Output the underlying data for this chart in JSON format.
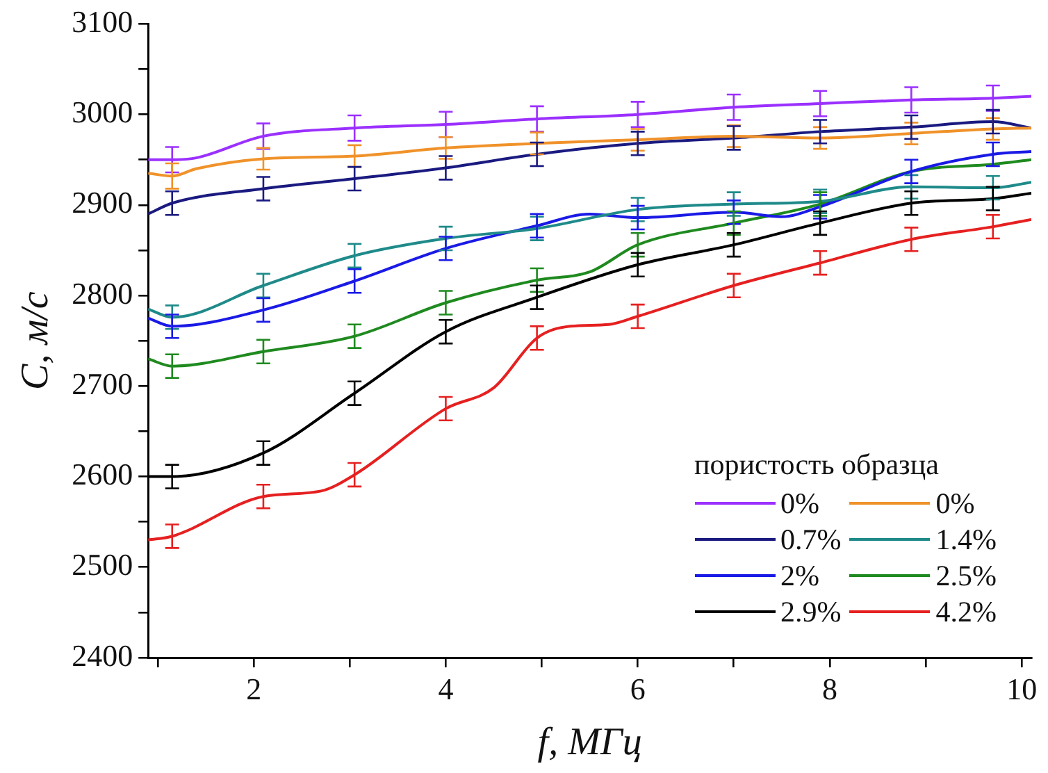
{
  "chart_data": {
    "type": "line",
    "xlabel": "f, МГц",
    "ylabel": "C, м/с",
    "legend_title": "пористость образца",
    "legend": "bottom right",
    "grid": false,
    "line_style": "solid",
    "xlim": [
      0.9,
      10.1
    ],
    "xticks": [
      {
        "value": 1,
        "label": null
      },
      2,
      {
        "value": 3,
        "label": null
      },
      4,
      {
        "value": 5,
        "label": null
      },
      6,
      {
        "value": 7,
        "label": null
      },
      8,
      {
        "value": 9,
        "label": null
      },
      10
    ],
    "ylim": [
      2400,
      3100
    ],
    "yticks": [
      2400,
      {
        "value": 2450,
        "label": null
      },
      2500,
      {
        "value": 2550,
        "label": null
      },
      2600,
      {
        "value": 2650,
        "label": null
      },
      2700,
      {
        "value": 2750,
        "label": null
      },
      2800,
      {
        "value": 2850,
        "label": null
      },
      2900,
      {
        "value": 2950,
        "label": null
      },
      3000,
      {
        "value": 3050,
        "label": null
      },
      3100
    ],
    "series": [
      {
        "name": "0%",
        "color": "#9b30ff",
        "x": [
          0.9,
          1.15,
          1.4,
          2.1,
          3.05,
          4,
          4.95,
          6,
          7,
          7.9,
          8.85,
          9.7,
          10.1
        ],
        "values": [
          2950,
          2950,
          2952,
          2976,
          2985,
          2989,
          2995,
          3000,
          3008,
          3012,
          3016,
          3018,
          3020
        ],
        "errors": [
          null,
          14,
          null,
          14,
          14,
          14,
          14,
          14,
          14,
          14,
          14,
          14,
          null
        ]
      },
      {
        "name": "0%",
        "color": "#f0922a",
        "x": [
          0.9,
          1.15,
          1.4,
          2.1,
          3.05,
          4,
          4.95,
          6,
          7,
          7.9,
          8.85,
          9.7,
          10.1
        ],
        "values": [
          2935,
          2932,
          2940,
          2951,
          2954,
          2963,
          2968,
          2972,
          2976,
          2974,
          2979,
          2984,
          2985
        ],
        "errors": [
          null,
          14,
          null,
          12,
          12,
          12,
          12,
          12,
          12,
          12,
          12,
          12,
          null
        ]
      },
      {
        "name": "0.7%",
        "color": "#1a1a80",
        "x": [
          0.9,
          1.15,
          2.1,
          3.05,
          4,
          4.95,
          6,
          7,
          7.9,
          8.85,
          9.7,
          10.1
        ],
        "values": [
          2890,
          2902,
          2918,
          2929,
          2941,
          2956,
          2968,
          2974,
          2981,
          2986,
          2992,
          2985
        ],
        "errors": [
          null,
          13,
          13,
          13,
          13,
          13,
          13,
          13,
          13,
          13,
          13,
          null
        ]
      },
      {
        "name": "1.4%",
        "color": "#1f8a8a",
        "x": [
          0.9,
          1.15,
          2.1,
          3.05,
          4,
          4.95,
          6,
          7,
          7.9,
          8.85,
          9.7,
          10.1
        ],
        "values": [
          2785,
          2776,
          2811,
          2844,
          2863,
          2874,
          2895,
          2901,
          2904,
          2920,
          2919,
          2925
        ],
        "errors": [
          null,
          13,
          13,
          13,
          13,
          13,
          13,
          13,
          13,
          13,
          13,
          null
        ]
      },
      {
        "name": "2%",
        "color": "#1a1ae6",
        "x": [
          0.9,
          1.15,
          2.1,
          3.05,
          4,
          4.95,
          5.5,
          6,
          7,
          7.5,
          7.9,
          8.85,
          9.7,
          10.1
        ],
        "values": [
          2775,
          2766,
          2784,
          2816,
          2852,
          2877,
          2890,
          2886,
          2892,
          2887,
          2898,
          2937,
          2956,
          2959
        ],
        "errors": [
          null,
          13,
          13,
          13,
          13,
          13,
          null,
          13,
          13,
          null,
          13,
          13,
          13,
          null
        ]
      },
      {
        "name": "2.5%",
        "color": "#1f8a1f",
        "x": [
          0.9,
          1.15,
          2.1,
          3.05,
          4,
          4.95,
          5.5,
          6,
          7,
          7.9,
          8.85,
          9.7,
          10.1
        ],
        "values": [
          2730,
          2722,
          2738,
          2755,
          2792,
          2817,
          2826,
          2856,
          2880,
          2901,
          2937,
          2945,
          2950
        ],
        "errors": [
          null,
          13,
          13,
          13,
          13,
          13,
          null,
          13,
          13,
          13,
          null,
          null,
          null
        ]
      },
      {
        "name": "2.9%",
        "color": "#000000",
        "x": [
          0.9,
          1.15,
          2.1,
          3.05,
          4,
          4.95,
          6,
          7,
          7.9,
          8.85,
          9.7,
          10.1
        ],
        "values": [
          2600,
          2600,
          2626,
          2692,
          2760,
          2798,
          2834,
          2856,
          2880,
          2902,
          2907,
          2913
        ],
        "errors": [
          null,
          13,
          13,
          13,
          13,
          13,
          13,
          13,
          13,
          13,
          13,
          null
        ]
      },
      {
        "name": "4.2%",
        "color": "#e62020",
        "x": [
          0.9,
          1.15,
          2.1,
          2.7,
          3.05,
          4,
          4.5,
          4.95,
          5.3,
          5.7,
          6,
          7,
          7.9,
          8.85,
          9.7,
          10.1
        ],
        "values": [
          2530,
          2534,
          2578,
          2584,
          2602,
          2675,
          2698,
          2753,
          2766,
          2768,
          2777,
          2811,
          2836,
          2862,
          2876,
          2884
        ],
        "errors": [
          null,
          13,
          13,
          null,
          13,
          13,
          null,
          13,
          null,
          null,
          13,
          13,
          13,
          13,
          13,
          null
        ]
      }
    ]
  }
}
